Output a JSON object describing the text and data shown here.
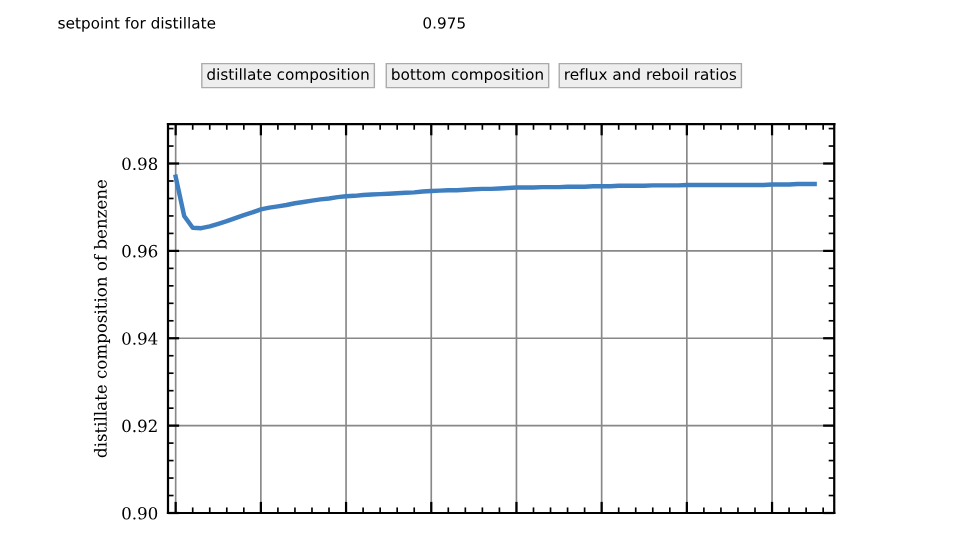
{
  "chart_data": {
    "type": "line",
    "ylabel": "distillate composition of benzene",
    "annotations": [
      "setpoint for distillate",
      "0.975",
      "distillate composition",
      "bottom composition",
      "reflux and reboil ratios"
    ],
    "categories": [
      null,
      null,
      null,
      null,
      null,
      null,
      null,
      null,
      null,
      null,
      null,
      null,
      null,
      null,
      null,
      null,
      null,
      null,
      null,
      null,
      null,
      null,
      null,
      null,
      null,
      null,
      null,
      null,
      null,
      null,
      null,
      null,
      null,
      null,
      null,
      null,
      null,
      null,
      null,
      null,
      null,
      null,
      null,
      null,
      null,
      null,
      null,
      null,
      null,
      null,
      null,
      null,
      null,
      null,
      null,
      null,
      null,
      null,
      null,
      null,
      null,
      null,
      null,
      null,
      null,
      null,
      null,
      null,
      null,
      null,
      null,
      null,
      null,
      null,
      null,
      null
    ],
    "series": [
      {
        "color": "#3f7fc0",
        "values": [
          0.977,
          0.968,
          0.9653,
          0.9652,
          0.9656,
          0.9662,
          0.9668,
          0.9675,
          0.9682,
          0.9688,
          0.9695,
          0.9699,
          0.9702,
          0.9705,
          0.9709,
          0.9712,
          0.9715,
          0.9718,
          0.972,
          0.9723,
          0.9725,
          0.9726,
          0.9728,
          0.9729,
          0.973,
          0.9731,
          0.9732,
          0.9733,
          0.9734,
          0.9736,
          0.9737,
          0.9738,
          0.9739,
          0.9739,
          0.974,
          0.9741,
          0.9742,
          0.9742,
          0.9743,
          0.9744,
          0.9745,
          0.9745,
          0.9745,
          0.9746,
          0.9746,
          0.9746,
          0.9747,
          0.9747,
          0.9747,
          0.9748,
          0.9748,
          0.9748,
          0.9749,
          0.9749,
          0.9749,
          0.9749,
          0.975,
          0.975,
          0.975,
          0.975,
          0.9751,
          0.9751,
          0.9751,
          0.9751,
          0.9751,
          0.9751,
          0.9751,
          0.9751,
          0.9751,
          0.9751,
          0.9752,
          0.9752,
          0.9752,
          0.9753,
          0.9753,
          0.9753
        ]
      }
    ],
    "ylim": [
      0.9,
      0.989
    ],
    "yticks": [
      {
        "value": 0.9,
        "label": "0.90"
      },
      {
        "value": 0.92,
        "label": "0.92"
      },
      {
        "value": 0.94,
        "label": "0.94"
      },
      {
        "value": 0.96,
        "label": "0.96"
      },
      {
        "value": 0.98,
        "label": "0.98"
      }
    ],
    "grid": true,
    "marker": "none",
    "line_style": "solid"
  }
}
